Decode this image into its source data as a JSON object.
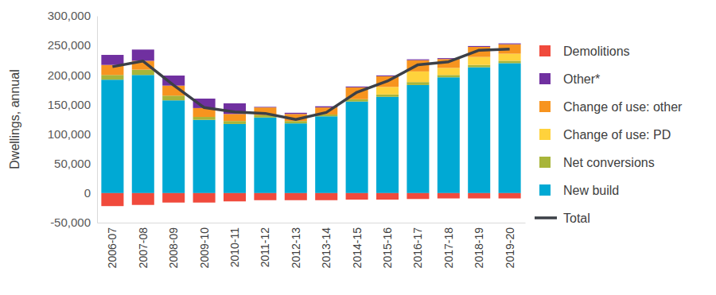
{
  "chart_data": {
    "type": "bar",
    "stacked": true,
    "legend": "right",
    "grid": false,
    "y_label": "Dwellings, annual",
    "categories": [
      "2006-07",
      "2007-08",
      "2008-09",
      "2009-10",
      "2010-11",
      "2011-12",
      "2012-13",
      "2013-14",
      "2014-15",
      "2015-16",
      "2016-17",
      "2017-18",
      "2018-19",
      "2019-20"
    ],
    "ylim": [
      -50000,
      300000
    ],
    "yticks": [
      {
        "value": -50000,
        "label": "-50,000"
      },
      0,
      {
        "value": 50000,
        "label": "50,000"
      },
      {
        "value": 100000,
        "label": "100,000"
      },
      {
        "value": 150000,
        "label": "150,000"
      },
      {
        "value": 200000,
        "label": "200,000"
      },
      {
        "value": 250000,
        "label": "250,000"
      },
      {
        "value": 300000,
        "label": "300,000"
      }
    ],
    "series": [
      {
        "name": "New build",
        "color": "#00A9D4",
        "type": "bar",
        "values": [
          192000,
          200000,
          157000,
          124000,
          117000,
          128000,
          118000,
          130000,
          155000,
          163000,
          183000,
          196000,
          213000,
          220000
        ]
      },
      {
        "name": "Net conversions",
        "color": "#A8B53A",
        "type": "bar",
        "values": [
          8000,
          9000,
          8000,
          5000,
          5000,
          4000,
          4000,
          3000,
          4000,
          4000,
          5000,
          4000,
          4000,
          4000
        ]
      },
      {
        "name": "Change of use: PD",
        "color": "#FFD23C",
        "type": "bar",
        "values": [
          0,
          0,
          0,
          0,
          0,
          0,
          0,
          0,
          0,
          12800,
          18000,
          12000,
          13500,
          12000
        ]
      },
      {
        "name": "Change of use: other",
        "color": "#F7941F",
        "type": "bar",
        "values": [
          17000,
          15000,
          17000,
          15000,
          12000,
          13000,
          12000,
          12000,
          20000,
          18000,
          19000,
          15000,
          17000,
          16000
        ]
      },
      {
        "name": "Other*",
        "color": "#7030A0",
        "type": "bar",
        "values": [
          17000,
          19000,
          17000,
          16000,
          18000,
          1000,
          2000,
          2000,
          1500,
          1500,
          1500,
          1500,
          1500,
          1500
        ]
      },
      {
        "name": "Demolitions",
        "color": "#F04A3C",
        "type": "bar",
        "values": [
          -22000,
          -20000,
          -16000,
          -16000,
          -14000,
          -12000,
          -12000,
          -12000,
          -11000,
          -11000,
          -10000,
          -9000,
          -9000,
          -9000
        ]
      },
      {
        "name": "Total",
        "color": "#3C4047",
        "type": "line",
        "values": [
          214000,
          223530,
          182770,
          144870,
          137390,
          134900,
          124720,
          136610,
          170690,
          189650,
          217350,
          222280,
          241880,
          243770
        ]
      }
    ]
  }
}
